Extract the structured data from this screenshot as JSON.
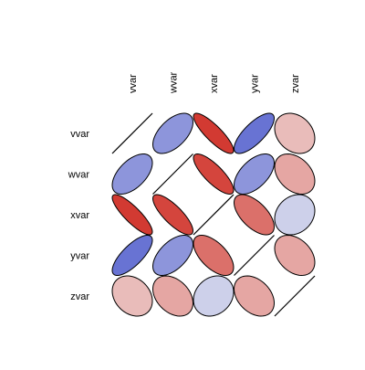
{
  "chart_data": {
    "type": "heatmap",
    "variables": [
      "vvar",
      "wvar",
      "xvar",
      "yvar",
      "zvar"
    ],
    "matrix": [
      [
        1.0,
        0.55,
        -0.85,
        0.75,
        -0.25
      ],
      [
        0.55,
        1.0,
        -0.8,
        0.55,
        -0.35
      ],
      [
        -0.85,
        -0.8,
        1.0,
        -0.6,
        0.2
      ],
      [
        0.75,
        0.55,
        -0.6,
        1.0,
        -0.35
      ],
      [
        -0.25,
        -0.35,
        0.2,
        -0.35,
        1.0
      ]
    ],
    "colors": {
      "positive": "#3a48c8",
      "negative": "#cc1a10",
      "neutral": "#f2f2f2",
      "outline": "#000000"
    },
    "legend": "none",
    "grid": false
  }
}
